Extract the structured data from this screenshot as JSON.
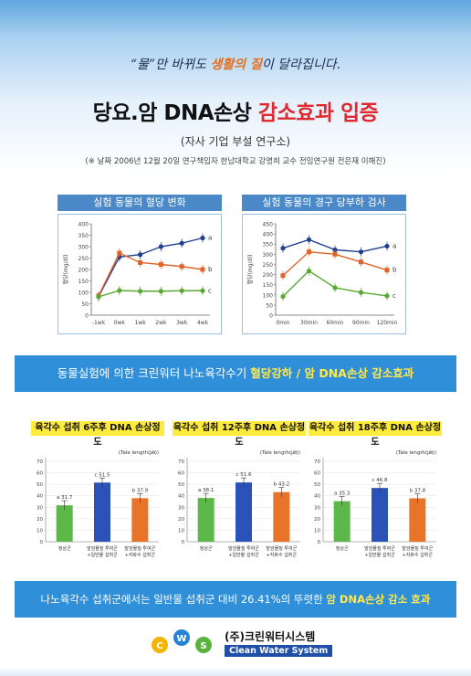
{
  "header": {
    "slogan_pre": "“물”만 바뀌도 ",
    "slogan_hl": "생활의 질",
    "slogan_post": "이 달라집니다.",
    "headline_black": "당요.암 DNA손상 ",
    "headline_red": "감소효과 입증",
    "subtitle": "(자사 기업 부설 연구소)",
    "note": "(※ 날짜  2006년 12월 20일   연구책임자   한남대학교 강명희 교수  전임연구원 전은재 이해진)"
  },
  "charts": [
    {
      "title": "실험 동물의 혈당 변화",
      "ylabel": "혈당(mg/dl)",
      "type": "line",
      "x": [
        "-1wk",
        "0wk",
        "1wk",
        "2wk",
        "3wk",
        "4wk"
      ],
      "ylim": [
        0,
        400
      ],
      "yticks": [
        0,
        50,
        100,
        150,
        200,
        250,
        300,
        350,
        400
      ],
      "series": [
        {
          "name": "a",
          "color": "#1f3f8f",
          "values": [
            82,
            255,
            265,
            300,
            315,
            338
          ]
        },
        {
          "name": "b",
          "color": "#e0642a",
          "values": [
            85,
            272,
            230,
            222,
            213,
            200
          ]
        },
        {
          "name": "c",
          "color": "#5aa832",
          "values": [
            80,
            108,
            105,
            105,
            107,
            107
          ]
        }
      ]
    },
    {
      "title": "실험 동물의 경구 당부하 검사",
      "ylabel": "혈당(mg/dl)",
      "type": "line",
      "x": [
        "0min",
        "30min",
        "60min",
        "90min",
        "120min"
      ],
      "ylim": [
        0,
        450
      ],
      "yticks": [
        0,
        50,
        100,
        150,
        200,
        250,
        300,
        350,
        400,
        450
      ],
      "series": [
        {
          "name": "a",
          "color": "#1f3f8f",
          "values": [
            330,
            372,
            322,
            312,
            340
          ]
        },
        {
          "name": "b",
          "color": "#e0642a",
          "values": [
            195,
            312,
            300,
            262,
            222
          ]
        },
        {
          "name": "c",
          "color": "#5aa832",
          "values": [
            92,
            218,
            135,
            112,
            95
          ]
        }
      ]
    }
  ],
  "banner1": {
    "pre": "동물실험에 의한 크린워터 나노육각수기 ",
    "hl": "혈당강하 / 암 DNA손상 감소효과"
  },
  "bar_charts": [
    {
      "title": "육각수 섭취 6주후 DNA 손상정도",
      "unit": "(Tale length(㎛))",
      "type": "bar",
      "ylim": [
        0,
        70
      ],
      "yticks": [
        0,
        10,
        20,
        30,
        40,
        50,
        60,
        70
      ],
      "categories": [
        "정상군",
        "발암물질 투여군+일반물 섭취군",
        "발암물질 투여군+자화수 섭취군"
      ],
      "cat_lines": [
        [
          "정상군"
        ],
        [
          "발암물질 투여군",
          "+일반물 섭취군"
        ],
        [
          "발암물질 투여군",
          "+자화수 섭취군"
        ]
      ],
      "values": [
        31.7,
        51.5,
        37.9
      ],
      "labels": [
        "a 31.7",
        "c 51.5",
        "b 37.9"
      ]
    },
    {
      "title": "육각수 섭취 12주후 DNA 손상정도",
      "unit": "(Tale length(㎛))",
      "type": "bar",
      "ylim": [
        0,
        70
      ],
      "yticks": [
        0,
        10,
        20,
        30,
        40,
        50,
        60,
        70
      ],
      "categories": [
        "정상군",
        "발암물질 투여군+일반물 섭취군",
        "발암물질 투여군+자화수 섭취군"
      ],
      "cat_lines": [
        [
          "정상군"
        ],
        [
          "발암물질 투여군",
          "+일반물 섭취군"
        ],
        [
          "발암물질 투여군",
          "+자화수 섭취군"
        ]
      ],
      "values": [
        38.1,
        51.6,
        43.2
      ],
      "labels": [
        "a 38.1",
        "c 51.6",
        "b 43.2"
      ]
    },
    {
      "title": "육각수 섭취 18주후 DNA 손상정도",
      "unit": "(Tale length(㎛))",
      "type": "bar",
      "ylim": [
        0,
        70
      ],
      "yticks": [
        0,
        10,
        20,
        30,
        40,
        50,
        60,
        70
      ],
      "categories": [
        "정상군",
        "발암물질 투여군+일반물 섭취군",
        "발암물질 투여군+자화수 섭취군"
      ],
      "cat_lines": [
        [
          "정상군"
        ],
        [
          "발암물질 투여군",
          "+일반물 섭취군"
        ],
        [
          "발암물질 투여군",
          "+자화수 섭취군"
        ]
      ],
      "values": [
        35.3,
        46.8,
        37.8
      ],
      "labels": [
        "a 35.3",
        "c 46.8",
        "b 37.8"
      ]
    }
  ],
  "bar_colors": [
    "#5db84a",
    "#2a52b8",
    "#e8742a"
  ],
  "banner2": {
    "pre": "나노육각수 섭취군에서는 일반물 섭취군 대비 26.41%의 뚜렷한 ",
    "hl": "암 DNA손상 감소 효과"
  },
  "logo": {
    "letters": [
      "C",
      "W",
      "S"
    ],
    "name_ko": "(주)크린워터시스템",
    "name_en": "Clean Water System"
  }
}
